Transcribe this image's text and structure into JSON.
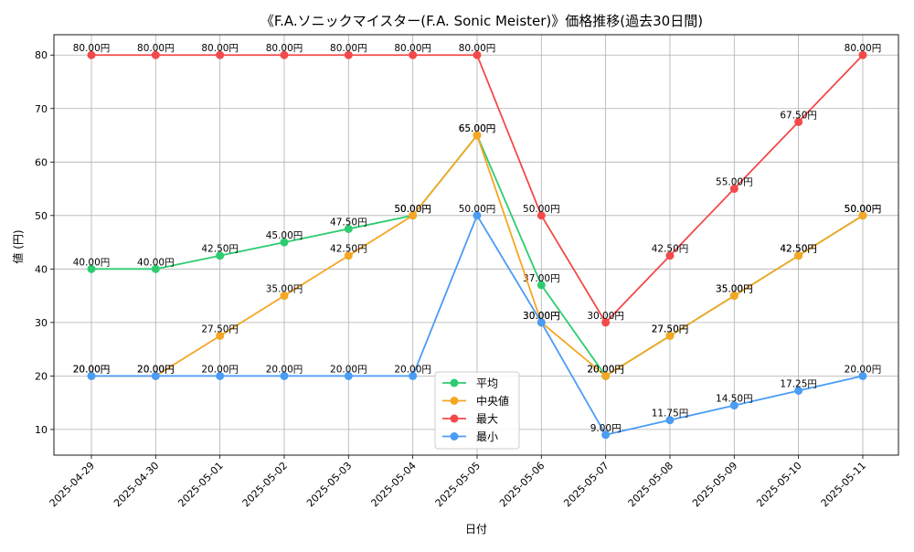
{
  "chart_data": {
    "type": "line",
    "title": "《F.A.ソニックマイスター(F.A. Sonic Meister)》価格推移(過去30日間)",
    "xlabel": "日付",
    "ylabel": "値 (円)",
    "categories": [
      "2025-04-29",
      "2025-04-30",
      "2025-05-01",
      "2025-05-02",
      "2025-05-03",
      "2025-05-04",
      "2025-05-05",
      "2025-05-06",
      "2025-05-07",
      "2025-05-08",
      "2025-05-09",
      "2025-05-10",
      "2025-05-11"
    ],
    "ylim": [
      5.2,
      83.8
    ],
    "yticks": [
      10,
      20,
      30,
      40,
      50,
      60,
      70,
      80
    ],
    "grid": true,
    "legend_position": "bottom-center",
    "value_suffix": "円",
    "series": [
      {
        "name": "平均",
        "color": "#2ecc71",
        "values": [
          40,
          40,
          42.5,
          45,
          47.5,
          50,
          65,
          37,
          20,
          27.5,
          35,
          42.5,
          50
        ]
      },
      {
        "name": "中央値",
        "color": "#f5a623",
        "values": [
          20,
          20,
          27.5,
          35,
          42.5,
          50,
          65,
          30,
          20,
          27.5,
          35,
          42.5,
          50
        ]
      },
      {
        "name": "最大",
        "color": "#f24a4a",
        "values": [
          80,
          80,
          80,
          80,
          80,
          80,
          80,
          50,
          30,
          42.5,
          55,
          67.5,
          80
        ]
      },
      {
        "name": "最小",
        "color": "#4a9cf5",
        "values": [
          20,
          20,
          20,
          20,
          20,
          20,
          50,
          30,
          9,
          11.75,
          14.5,
          17.25,
          20
        ]
      }
    ]
  }
}
